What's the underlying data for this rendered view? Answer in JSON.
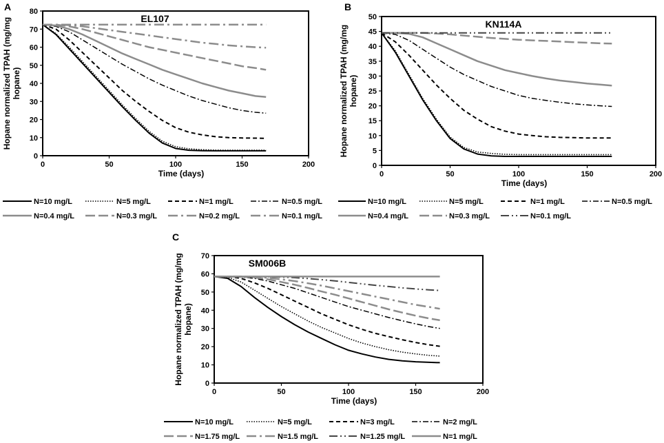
{
  "figure": {
    "line_styles": {
      "solid": {
        "color": "#000000",
        "dash": "",
        "width": 2
      },
      "dot": {
        "color": "#000000",
        "dash": "1.5 2",
        "width": 1.6
      },
      "dash": {
        "color": "#000000",
        "dash": "6 4",
        "width": 2
      },
      "dashdot": {
        "color": "#000000",
        "dash": "8 3 2 3",
        "width": 1.5
      },
      "gray-solid": {
        "color": "#8c8c8c",
        "dash": "",
        "width": 2.5
      },
      "gray-longdash": {
        "color": "#8c8c8c",
        "dash": "14 5",
        "width": 2.5
      },
      "gray-dashdot": {
        "color": "#8c8c8c",
        "dash": "14 5 3 5",
        "width": 2.5
      },
      "dark-dashdotdot": {
        "color": "#444444",
        "dash": "12 4 2 4 2 4",
        "width": 2
      }
    }
  },
  "chart_data": [
    {
      "id": "A",
      "panel_label": "A",
      "type": "line",
      "title": "EL107",
      "xlabel": "Time (days)",
      "ylabel": "Hopane normalized TPAH (mg/mg hopane)",
      "ylabel_lines": [
        "Hopane normalized TPAH (mg/mg",
        "hopane)"
      ],
      "xlim": [
        0,
        200
      ],
      "ylim": [
        0,
        80
      ],
      "x_ticks": [
        0,
        50,
        100,
        150,
        200
      ],
      "y_ticks": [
        0,
        10,
        20,
        30,
        40,
        50,
        60,
        70,
        80
      ],
      "x": [
        0,
        10,
        20,
        30,
        40,
        50,
        60,
        70,
        80,
        90,
        100,
        110,
        120,
        130,
        140,
        150,
        160,
        168
      ],
      "series": [
        {
          "name": "N=10 mg/L",
          "style": "solid",
          "values": [
            72.5,
            67,
            59,
            51,
            43,
            35,
            27,
            19.5,
            12.5,
            7,
            4,
            3,
            2.8,
            2.7,
            2.7,
            2.7,
            2.7,
            2.7
          ]
        },
        {
          "name": "N=5 mg/L",
          "style": "dot",
          "values": [
            72.5,
            67.5,
            60,
            52,
            44,
            36,
            28,
            20.5,
            13.5,
            8,
            5,
            3.8,
            3.3,
            3.1,
            3,
            3,
            3,
            3
          ]
        },
        {
          "name": "N=1 mg/L",
          "style": "dash",
          "values": [
            72.5,
            70,
            64,
            57,
            50,
            43,
            36,
            30,
            24.5,
            19.5,
            15.5,
            13,
            11.5,
            10.5,
            10,
            9.8,
            9.7,
            9.6
          ]
        },
        {
          "name": "N=0.5 mg/L",
          "style": "dashdot",
          "values": [
            72.5,
            71.5,
            68.5,
            64,
            59.5,
            55,
            50.5,
            46.5,
            42.5,
            39,
            36,
            33,
            30.5,
            28.5,
            26.5,
            25,
            24,
            23.5
          ]
        },
        {
          "name": "N=0.4 mg/L",
          "style": "gray-solid",
          "values": [
            72.5,
            72,
            70,
            67,
            63.5,
            60,
            56.5,
            53.5,
            50.5,
            47.5,
            45,
            42.5,
            40,
            38,
            36,
            34.5,
            33,
            32.5
          ]
        },
        {
          "name": "N=0.3 mg/L",
          "style": "gray-longdash",
          "values": [
            72.5,
            72.5,
            71.5,
            70,
            68,
            66,
            64,
            62,
            60,
            58.5,
            57,
            55.5,
            54,
            52.5,
            51,
            49.5,
            48.5,
            47.5
          ]
        },
        {
          "name": "N=0.2 mg/L",
          "style": "gray-dashdot",
          "values": [
            72.5,
            72.5,
            72.2,
            71.5,
            70.5,
            69.5,
            68.5,
            67.5,
            66.5,
            65.5,
            64.5,
            63.5,
            62.5,
            61.8,
            61,
            60.5,
            60,
            59.7
          ]
        },
        {
          "name": "N=0.1 mg/L",
          "style": "gray-dashdot",
          "values": [
            72.5,
            72.5,
            72.5,
            72.5,
            72.5,
            72.5,
            72.5,
            72.5,
            72.5,
            72.5,
            72.5,
            72.5,
            72.5,
            72.5,
            72.5,
            72.5,
            72.5,
            72.5
          ]
        }
      ],
      "legend_rows": [
        [
          "N=10 mg/L",
          "N=5 mg/L",
          "N=1 mg/L",
          "N=0.5 mg/L"
        ],
        [
          "N=0.4 mg/L",
          "N=0.3 mg/L",
          "N=0.2 mg/L",
          "N=0.1 mg/L"
        ]
      ]
    },
    {
      "id": "B",
      "panel_label": "B",
      "type": "line",
      "title": "KN114A",
      "xlabel": "Time (days)",
      "ylabel": "Hopane normalized TPAH (mg/mg hopane)",
      "ylabel_lines": [
        "Hopane normalized TPAH (mg/mg",
        "hopane)"
      ],
      "xlim": [
        0,
        200
      ],
      "ylim": [
        0,
        50
      ],
      "x_ticks": [
        0,
        50,
        100,
        150,
        200
      ],
      "y_ticks": [
        0,
        5,
        10,
        15,
        20,
        25,
        30,
        35,
        40,
        45,
        50
      ],
      "x": [
        0,
        10,
        20,
        30,
        40,
        50,
        60,
        70,
        80,
        90,
        100,
        110,
        120,
        130,
        140,
        150,
        160,
        168
      ],
      "series": [
        {
          "name": "N=10 mg/L",
          "style": "solid",
          "values": [
            44.5,
            38,
            30,
            22,
            15,
            9,
            5.5,
            3.8,
            3.2,
            3,
            3,
            3,
            3,
            3,
            3,
            3,
            3,
            3
          ]
        },
        {
          "name": "N=5 mg/L",
          "style": "dot",
          "values": [
            44.5,
            38.5,
            30.5,
            22.5,
            15.5,
            9.5,
            6,
            4.5,
            4,
            3.7,
            3.6,
            3.6,
            3.6,
            3.6,
            3.6,
            3.6,
            3.6,
            3.6
          ]
        },
        {
          "name": "N=1 mg/L",
          "style": "dash",
          "values": [
            44.5,
            41.5,
            37,
            32,
            27,
            22.5,
            18.5,
            15.5,
            13,
            11.5,
            10.5,
            10,
            9.6,
            9.4,
            9.3,
            9.2,
            9.2,
            9.2
          ]
        },
        {
          "name": "N=0.5 mg/L",
          "style": "dashdot",
          "values": [
            44.5,
            44,
            42,
            39,
            36,
            33,
            30.5,
            28.5,
            26.5,
            25,
            23.5,
            22.5,
            21.8,
            21.2,
            20.7,
            20.3,
            20,
            19.8
          ]
        },
        {
          "name": "N=0.4 mg/L",
          "style": "gray-solid",
          "values": [
            44.5,
            44.5,
            44.2,
            43,
            41,
            39,
            37,
            35,
            33.5,
            32,
            31,
            30,
            29.2,
            28.5,
            28,
            27.5,
            27.1,
            26.8
          ]
        },
        {
          "name": "N=0.3 mg/L",
          "style": "gray-longdash",
          "values": [
            44.5,
            44.5,
            44.5,
            44.5,
            44.3,
            44,
            43.6,
            43.2,
            42.8,
            42.5,
            42.2,
            42,
            41.8,
            41.6,
            41.4,
            41.2,
            41,
            40.9
          ]
        },
        {
          "name": "N=0.1 mg/L",
          "style": "dark-dashdotdot",
          "values": [
            44.5,
            44.5,
            44.5,
            44.5,
            44.5,
            44.5,
            44.5,
            44.5,
            44.5,
            44.5,
            44.5,
            44.5,
            44.5,
            44.5,
            44.5,
            44.5,
            44.5,
            44.5
          ]
        }
      ],
      "legend_rows": [
        [
          "N=10 mg/L",
          "N=5 mg/L",
          "N=1 mg/L",
          "N=0.5 mg/L"
        ],
        [
          "N=0.4 mg/L",
          "N=0.3 mg/L",
          "N=0.1 mg/L"
        ]
      ]
    },
    {
      "id": "C",
      "panel_label": "C",
      "type": "line",
      "title": "SM006B",
      "xlabel": "Time (days)",
      "ylabel": "Hopane normalized TPAH (mg/mg hopane)",
      "ylabel_lines": [
        "Hopane normalized TPAH (mg/mg",
        "hopane)"
      ],
      "xlim": [
        0,
        200
      ],
      "ylim": [
        0,
        70
      ],
      "x_ticks": [
        0,
        50,
        100,
        150,
        200
      ],
      "y_ticks": [
        0,
        10,
        20,
        30,
        40,
        50,
        60,
        70
      ],
      "x": [
        0,
        10,
        20,
        30,
        40,
        50,
        60,
        70,
        80,
        90,
        100,
        110,
        120,
        130,
        140,
        150,
        160,
        168
      ],
      "series": [
        {
          "name": "N=10 mg/L",
          "style": "solid",
          "values": [
            58.5,
            57.5,
            53,
            47,
            41.5,
            36.5,
            32,
            28,
            24.5,
            21,
            18,
            16,
            14.3,
            13,
            12.2,
            11.7,
            11.4,
            11.2
          ]
        },
        {
          "name": "N=5 mg/L",
          "style": "dot",
          "values": [
            58.5,
            58,
            55.5,
            51,
            46.5,
            42,
            38,
            34,
            30.5,
            27.5,
            24.5,
            22,
            20,
            18.3,
            17,
            16,
            15.2,
            14.8
          ]
        },
        {
          "name": "N=3 mg/L",
          "style": "dash",
          "values": [
            58.5,
            58.5,
            57.5,
            55,
            52,
            48.5,
            45,
            41.5,
            38,
            35,
            32,
            29.5,
            27.3,
            25.5,
            23.8,
            22.3,
            21,
            20.2
          ]
        },
        {
          "name": "N=2 mg/L",
          "style": "dashdot",
          "values": [
            58.5,
            58.5,
            58.2,
            57.5,
            56,
            54,
            52,
            49.5,
            47,
            44.5,
            42,
            40,
            38,
            36,
            34.2,
            32.5,
            31,
            30
          ]
        },
        {
          "name": "N=1.75 mg/L",
          "style": "gray-longdash",
          "values": [
            58.5,
            58.5,
            58.4,
            58,
            57,
            55.5,
            54,
            52.2,
            50.3,
            48.5,
            46.5,
            44.5,
            42.5,
            40.5,
            38.7,
            37,
            35.5,
            34.5
          ]
        },
        {
          "name": "N=1.5 mg/L",
          "style": "gray-dashdot",
          "values": [
            58.5,
            58.5,
            58.5,
            58.3,
            57.8,
            57,
            56,
            54.8,
            53.5,
            52,
            50.5,
            49,
            47.5,
            46,
            44.5,
            43,
            41.8,
            40.8
          ]
        },
        {
          "name": "N=1.25 mg/L",
          "style": "dark-dashdotdot",
          "values": [
            58.5,
            58.5,
            58.5,
            58.5,
            58.4,
            58.2,
            57.9,
            57.4,
            56.8,
            56.1,
            55.3,
            54.5,
            53.7,
            53,
            52.3,
            51.7,
            51.2,
            50.8
          ]
        },
        {
          "name": "N=1 mg/L",
          "style": "gray-solid",
          "values": [
            58.5,
            58.5,
            58.5,
            58.5,
            58.5,
            58.5,
            58.5,
            58.5,
            58.5,
            58.5,
            58.5,
            58.5,
            58.5,
            58.5,
            58.5,
            58.5,
            58.5,
            58.5
          ]
        }
      ],
      "legend_rows": [
        [
          "N=10 mg/L",
          "N=5 mg/L",
          "N=3 mg/L",
          "N=2 mg/L"
        ],
        [
          "N=1.75 mg/L",
          "N=1.5 mg/L",
          "N=1.25 mg/L",
          "N=1 mg/L"
        ]
      ]
    }
  ]
}
